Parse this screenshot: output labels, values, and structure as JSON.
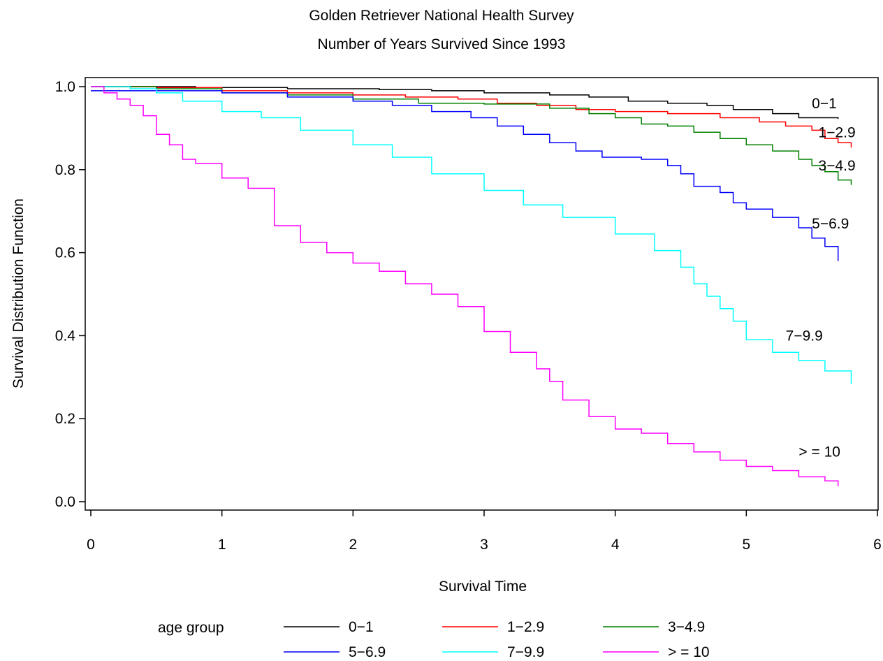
{
  "chart_data": {
    "type": "line",
    "title": "Golden Retriever National Health Survey",
    "subtitle": "Number of Years Survived Since 1993",
    "xlabel": "Survival Time",
    "ylabel": "Survival Distribution Function",
    "xlim": [
      0,
      6
    ],
    "ylim": [
      0,
      1
    ],
    "x_ticks": [
      0,
      1,
      2,
      3,
      4,
      5,
      6
    ],
    "x_tick_labels": [
      "0",
      "1",
      "2",
      "3",
      "4",
      "5",
      "6"
    ],
    "y_ticks": [
      0,
      0.2,
      0.4,
      0.6,
      0.8,
      1.0
    ],
    "y_tick_labels": [
      "0.0",
      "0.2",
      "0.4",
      "0.6",
      "0.8",
      "1.0"
    ],
    "grid": false,
    "legend_title": "age group",
    "legend_position": "bottom",
    "series": [
      {
        "name": "0−1",
        "color": "#000000",
        "label_at": [
          5.5,
          0.96
        ],
        "x": [
          0,
          0.3,
          0.8,
          1.5,
          2.2,
          2.6,
          3.0,
          3.5,
          3.8,
          4.1,
          4.4,
          4.7,
          4.9,
          5.2,
          5.4,
          5.7
        ],
        "y": [
          1.0,
          1.0,
          0.998,
          0.995,
          0.993,
          0.99,
          0.985,
          0.98,
          0.975,
          0.965,
          0.96,
          0.955,
          0.945,
          0.935,
          0.925,
          0.922
        ]
      },
      {
        "name": "1−2.9",
        "color": "#ff0000",
        "label_at": [
          5.55,
          0.89
        ],
        "x": [
          0,
          0.5,
          1.0,
          1.5,
          2.0,
          2.4,
          2.8,
          3.1,
          3.4,
          3.7,
          4.0,
          4.4,
          4.8,
          5.1,
          5.3,
          5.5,
          5.6,
          5.7,
          5.8
        ],
        "y": [
          1.0,
          0.998,
          0.99,
          0.985,
          0.98,
          0.975,
          0.97,
          0.96,
          0.955,
          0.945,
          0.94,
          0.935,
          0.925,
          0.915,
          0.905,
          0.895,
          0.875,
          0.865,
          0.853
        ]
      },
      {
        "name": "3−4.9",
        "color": "#008000",
        "label_at": [
          5.55,
          0.81
        ],
        "x": [
          0,
          0.5,
          1.0,
          1.5,
          2.0,
          2.5,
          3.0,
          3.5,
          3.8,
          4.0,
          4.2,
          4.4,
          4.6,
          4.8,
          5.0,
          5.2,
          5.4,
          5.5,
          5.6,
          5.7,
          5.8
        ],
        "y": [
          1.0,
          0.995,
          0.985,
          0.98,
          0.97,
          0.96,
          0.958,
          0.948,
          0.935,
          0.925,
          0.91,
          0.905,
          0.89,
          0.875,
          0.86,
          0.845,
          0.825,
          0.81,
          0.795,
          0.775,
          0.763
        ]
      },
      {
        "name": "5−6.9",
        "color": "#0000ff",
        "label_at": [
          5.5,
          0.67
        ],
        "x": [
          0,
          0.5,
          1.0,
          1.5,
          2.0,
          2.3,
          2.6,
          2.9,
          3.1,
          3.3,
          3.5,
          3.7,
          3.9,
          4.2,
          4.4,
          4.5,
          4.6,
          4.8,
          4.9,
          5.0,
          5.2,
          5.4,
          5.5,
          5.6,
          5.7
        ],
        "y": [
          0.99,
          0.99,
          0.985,
          0.975,
          0.965,
          0.955,
          0.94,
          0.925,
          0.905,
          0.885,
          0.865,
          0.845,
          0.83,
          0.825,
          0.81,
          0.79,
          0.76,
          0.745,
          0.72,
          0.705,
          0.685,
          0.66,
          0.635,
          0.615,
          0.58
        ]
      },
      {
        "name": "7−9.9",
        "color": "#00ffff",
        "label_at": [
          5.3,
          0.4
        ],
        "x": [
          0,
          0.3,
          0.5,
          0.7,
          1.0,
          1.3,
          1.6,
          2.0,
          2.3,
          2.6,
          3.0,
          3.3,
          3.6,
          4.0,
          4.3,
          4.5,
          4.6,
          4.7,
          4.8,
          4.9,
          5.0,
          5.2,
          5.4,
          5.6,
          5.8
        ],
        "y": [
          1.0,
          0.995,
          0.985,
          0.965,
          0.94,
          0.925,
          0.895,
          0.86,
          0.83,
          0.79,
          0.75,
          0.715,
          0.685,
          0.645,
          0.605,
          0.565,
          0.525,
          0.495,
          0.465,
          0.435,
          0.39,
          0.36,
          0.34,
          0.315,
          0.283
        ]
      },
      {
        "name": "> = 10",
        "color": "#ff00ff",
        "label_at": [
          5.4,
          0.12
        ],
        "x": [
          0,
          0.1,
          0.2,
          0.3,
          0.4,
          0.5,
          0.6,
          0.7,
          0.8,
          1.0,
          1.2,
          1.4,
          1.6,
          1.8,
          2.0,
          2.2,
          2.4,
          2.6,
          2.8,
          3.0,
          3.2,
          3.4,
          3.5,
          3.6,
          3.8,
          4.0,
          4.2,
          4.4,
          4.6,
          4.8,
          5.0,
          5.2,
          5.4,
          5.6,
          5.7
        ],
        "y": [
          1.0,
          0.985,
          0.97,
          0.955,
          0.93,
          0.885,
          0.86,
          0.825,
          0.815,
          0.78,
          0.755,
          0.665,
          0.625,
          0.6,
          0.575,
          0.555,
          0.525,
          0.5,
          0.47,
          0.41,
          0.36,
          0.32,
          0.29,
          0.245,
          0.205,
          0.175,
          0.165,
          0.14,
          0.12,
          0.1,
          0.085,
          0.075,
          0.06,
          0.05,
          0.037
        ]
      }
    ]
  }
}
